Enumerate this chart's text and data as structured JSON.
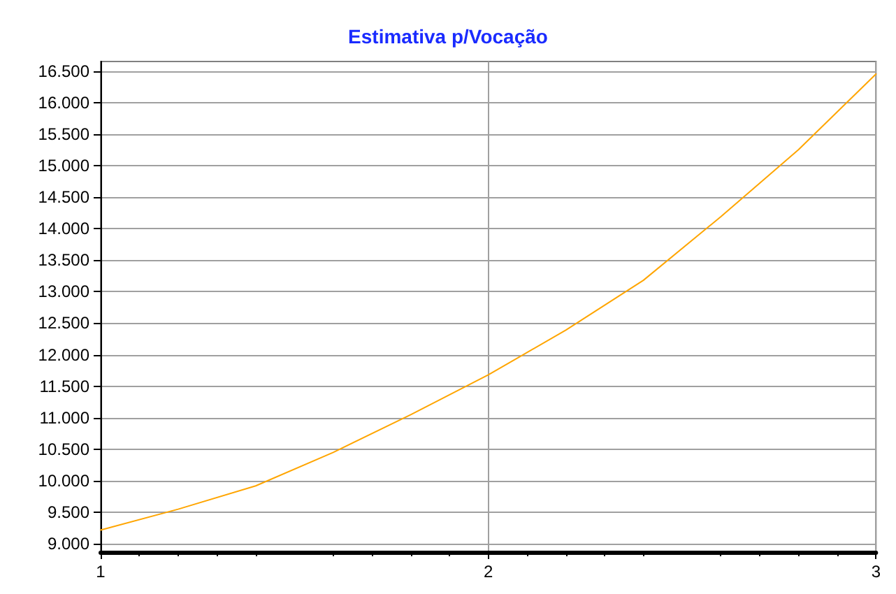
{
  "chart_data": {
    "type": "line",
    "title": "Estimativa p/Vocação",
    "x": [
      1,
      1.2,
      1.4,
      1.6,
      1.8,
      2,
      2.2,
      2.4,
      2.6,
      2.8,
      3
    ],
    "series": [
      {
        "color": "#ffa500",
        "values": [
          9220,
          9550,
          9920,
          10450,
          11050,
          11680,
          12390,
          13180,
          14190,
          15250,
          16450
        ]
      }
    ],
    "xlim": [
      1,
      3
    ],
    "xticks": [
      1,
      2,
      3
    ],
    "ylim": [
      8870,
      16650
    ],
    "yticks": [
      {
        "value": 9000,
        "label": "9.000"
      },
      {
        "value": 9500,
        "label": "9.500"
      },
      {
        "value": 10000,
        "label": "10.000"
      },
      {
        "value": 10500,
        "label": "10.500"
      },
      {
        "value": 11000,
        "label": "11.000"
      },
      {
        "value": 11500,
        "label": "11.500"
      },
      {
        "value": 12000,
        "label": "12.000"
      },
      {
        "value": 12500,
        "label": "12.500"
      },
      {
        "value": 13000,
        "label": "13.000"
      },
      {
        "value": 13500,
        "label": "13.500"
      },
      {
        "value": 14000,
        "label": "14.000"
      },
      {
        "value": 14500,
        "label": "14.500"
      },
      {
        "value": 15000,
        "label": "15.000"
      },
      {
        "value": 15500,
        "label": "15.500"
      },
      {
        "value": 16000,
        "label": "16.000"
      },
      {
        "value": 16500,
        "label": "16.500"
      }
    ],
    "grid": true,
    "marker": "none",
    "line_style": "solid"
  }
}
